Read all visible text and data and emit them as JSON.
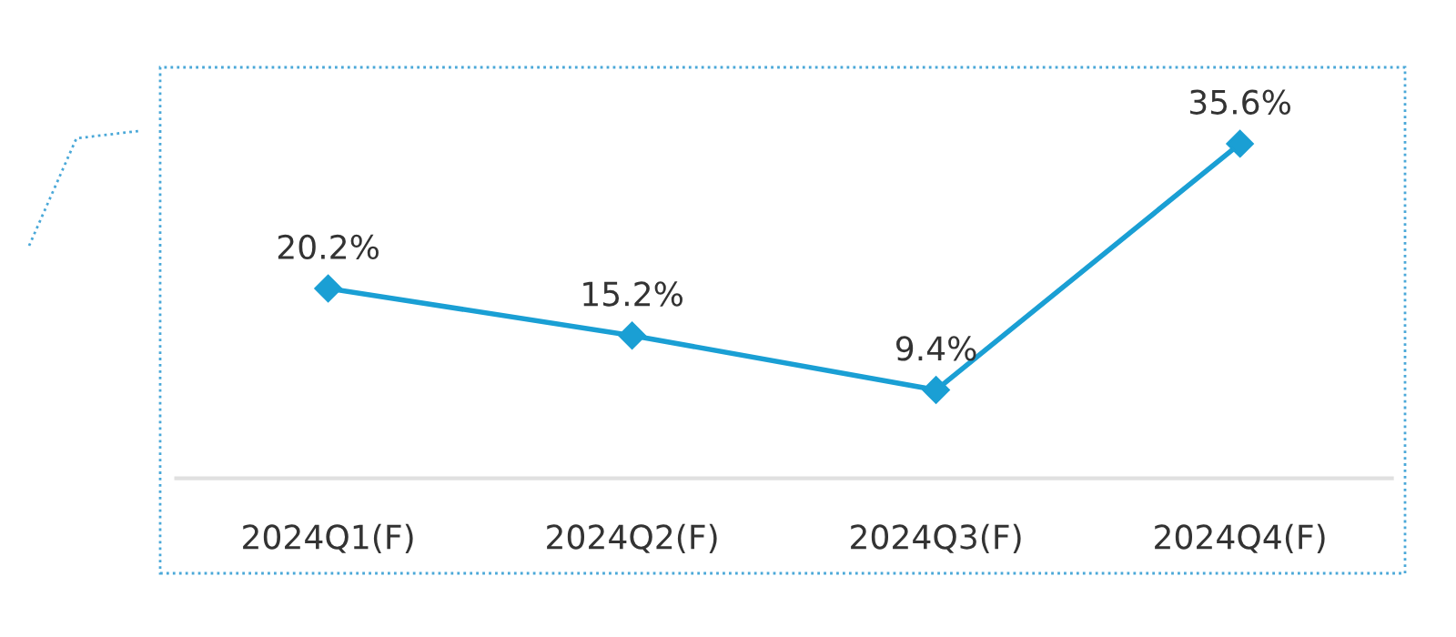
{
  "chart_data": {
    "type": "line",
    "categories": [
      "2024Q1(F)",
      "2024Q2(F)",
      "2024Q3(F)",
      "2024Q4(F)"
    ],
    "series": [
      {
        "color": "#1a9fd4",
        "values": [
          20.2,
          15.2,
          9.4,
          35.6
        ],
        "value_labels": [
          "20.2%",
          "15.2%",
          "9.4%",
          "35.6%"
        ]
      }
    ],
    "marker": "diamond",
    "line_style": "solid",
    "grid": false,
    "legend": false,
    "tick_labels": "x"
  }
}
